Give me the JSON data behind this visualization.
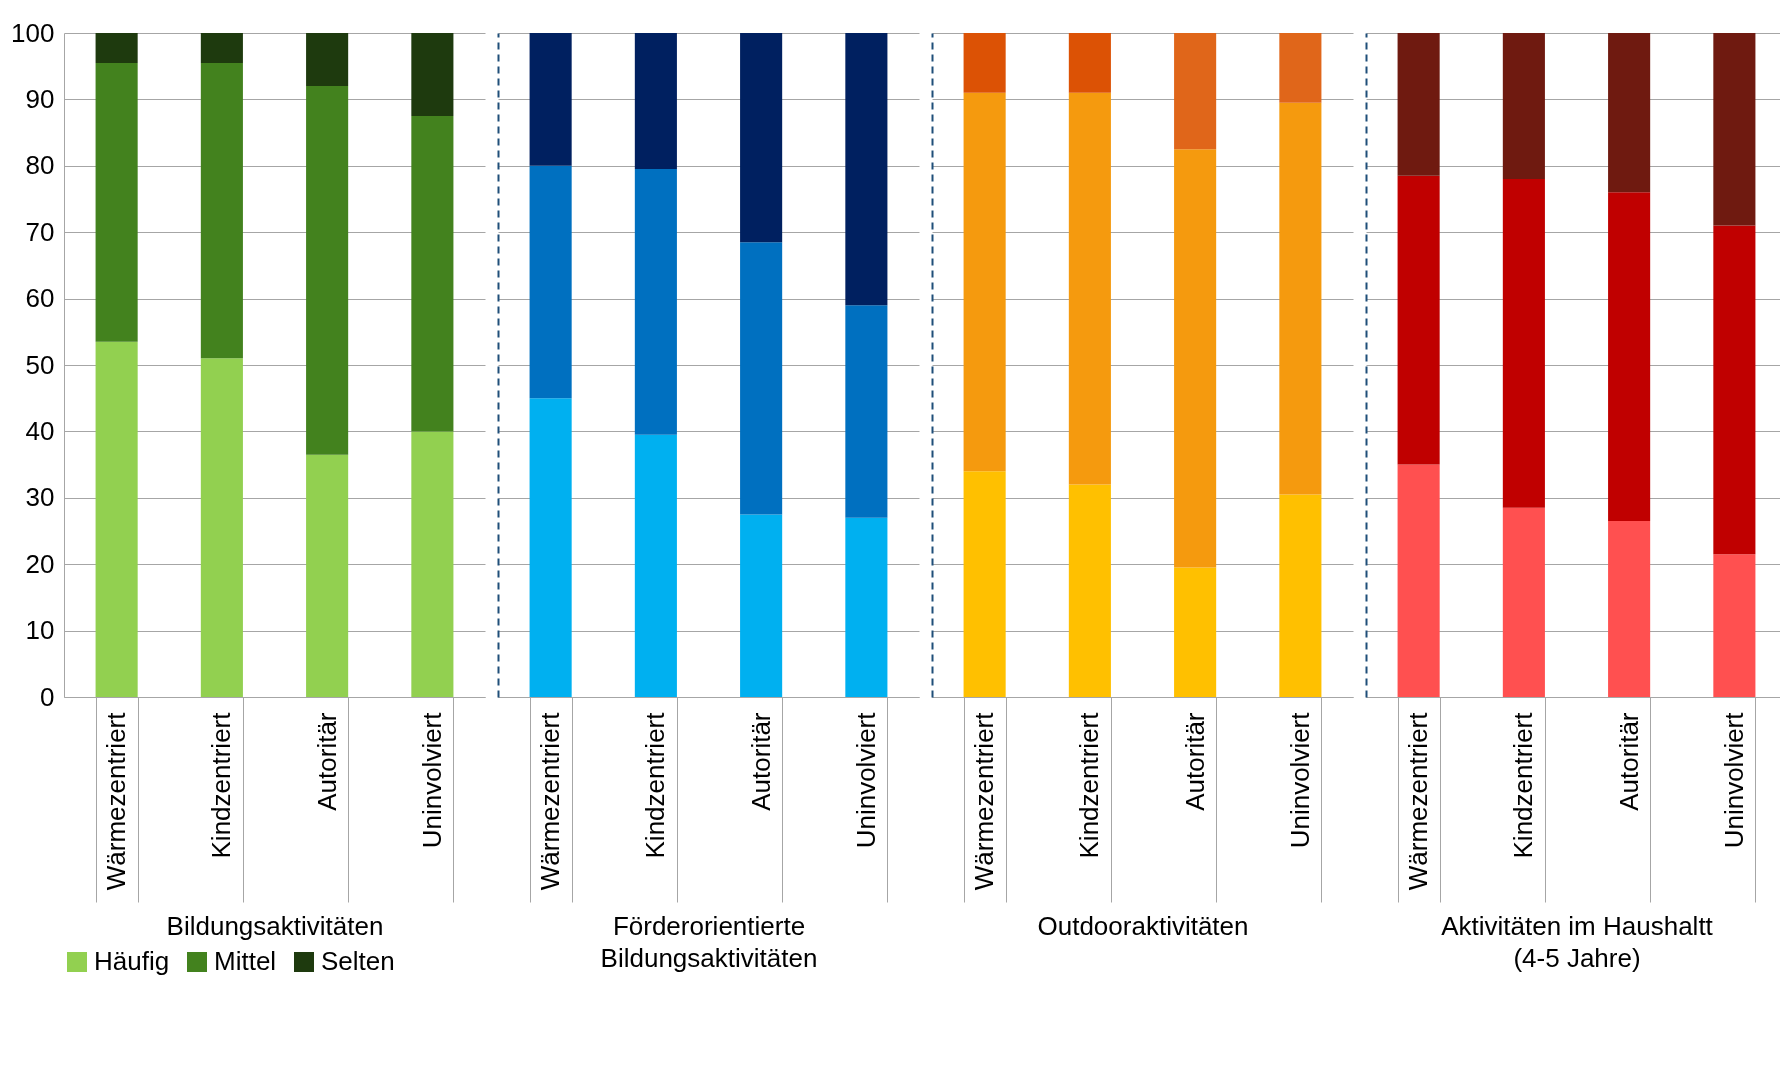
{
  "chart_data": [
    {
      "type": "bar",
      "stacked": true,
      "xlabel": "Bildungsaktivitäten",
      "categories": [
        "Wärmezentriert",
        "Kindzentriert",
        "Autoritär",
        "Uninvolviert"
      ],
      "ylim": [
        0,
        100
      ],
      "yticks": [
        0,
        10,
        20,
        30,
        40,
        50,
        60,
        70,
        80,
        90,
        100
      ],
      "grid": "y",
      "legend": "bottom",
      "series": [
        {
          "name": "Häufig",
          "color": "#92d050",
          "values": [
            53.5,
            51,
            36.5,
            40
          ]
        },
        {
          "name": "Mittel",
          "color": "#43821e",
          "values": [
            42,
            44.5,
            55.5,
            47.5
          ]
        },
        {
          "name": "Selten",
          "color": "#1e3a0e",
          "values": [
            4.5,
            4.5,
            8,
            12.5
          ]
        }
      ]
    },
    {
      "type": "bar",
      "stacked": true,
      "xlabel": "Förderorientierte\nBildungsaktivitäten",
      "categories": [
        "Wärmezentriert",
        "Kindzentriert",
        "Autoritär",
        "Uninvolviert"
      ],
      "ylim": [
        0,
        100
      ],
      "yticks": [
        0,
        10,
        20,
        30,
        40,
        50,
        60,
        70,
        80,
        90,
        100
      ],
      "grid": "y",
      "tick_labels": "x",
      "series": [
        {
          "color": "#00b0f0",
          "values": [
            45,
            39.5,
            27.5,
            27
          ]
        },
        {
          "color": "#0070c0",
          "values": [
            35,
            40,
            41,
            32
          ]
        },
        {
          "color": "#002060",
          "values": [
            20,
            20.5,
            31.5,
            41
          ]
        }
      ]
    },
    {
      "type": "bar",
      "stacked": true,
      "xlabel": "Outdooraktivitäten",
      "categories": [
        "Wärmezentriert",
        "Kindzentriert",
        "Autoritär",
        "Uninvolviert"
      ],
      "ylim": [
        0,
        100
      ],
      "yticks": [
        0,
        10,
        20,
        30,
        40,
        50,
        60,
        70,
        80,
        90,
        100
      ],
      "grid": "y",
      "tick_labels": "x",
      "series": [
        {
          "color": "#ffc000",
          "values": [
            34,
            32,
            19.5,
            30.5
          ]
        },
        {
          "color": "#f59a0e",
          "values": [
            57,
            59,
            63,
            59
          ]
        },
        {
          "colors": [
            "#dc5205",
            "#dc5205",
            "#e0661a",
            "#e0661a"
          ],
          "values": [
            9,
            9,
            17.5,
            10.5
          ]
        }
      ]
    },
    {
      "type": "bar",
      "stacked": true,
      "xlabel": "Aktivitäten im Haushaltt\n(4-5 Jahre)",
      "categories": [
        "Wärmezentriert",
        "Kindzentriert",
        "Autoritär",
        "Uninvolviert"
      ],
      "ylim": [
        0,
        100
      ],
      "yticks": [
        0,
        10,
        20,
        30,
        40,
        50,
        60,
        70,
        80,
        90,
        100
      ],
      "grid": "y",
      "tick_labels": "x",
      "series": [
        {
          "color": "#ff5050",
          "values": [
            35,
            28.5,
            26.5,
            21.5
          ]
        },
        {
          "color": "#c00000",
          "values": [
            43.5,
            49.5,
            49.5,
            49.5
          ]
        },
        {
          "color": "#6f1a10",
          "values": [
            21.5,
            22,
            24,
            29
          ]
        }
      ]
    }
  ]
}
